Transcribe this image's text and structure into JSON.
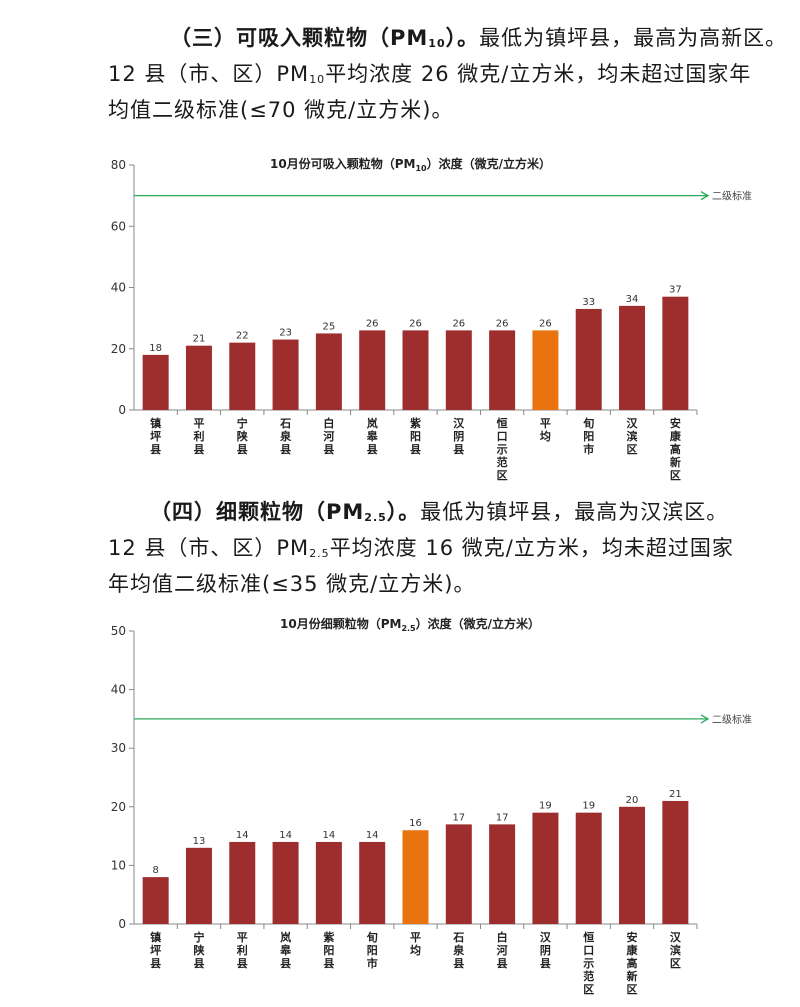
{
  "section3": {
    "heading_a": "（三）可吸入颗粒物（PM",
    "heading_sub": "10",
    "heading_b": "）。",
    "line1_rest": "最低为镇坪县，最高为高新区。",
    "line2_a": "12 县（市、区）PM",
    "line2_sub": "10",
    "line2_b": "平均浓度 26 微克/立方米，均未超过国家年",
    "line3": "均值二级标准(≤70 微克/立方米)。"
  },
  "section4": {
    "heading_a": "（四）细颗粒物（PM",
    "heading_sub": "2.5",
    "heading_b": "）。",
    "line1_rest": "最低为镇坪县，最高为汉滨区。",
    "line2_a": "12 县（市、区）PM",
    "line2_sub": "2.5",
    "line2_b": "平均浓度 16 微克/立方米，均未超过国家",
    "line3": "年均值二级标准(≤35 微克/立方米)。"
  },
  "colors": {
    "bar": "#9e2e2e",
    "highlight": "#e8730f",
    "standard_line": "#2ea85a",
    "axis": "#888888"
  },
  "chart_data": [
    {
      "type": "bar",
      "title_a": "10月份可吸入颗粒物（PM",
      "title_sub": "10",
      "title_b": "）浓度（微克/立方米）",
      "ylim": [
        0,
        80
      ],
      "yticks": [
        0,
        20,
        40,
        60,
        80
      ],
      "categories": [
        "镇坪县",
        "平利县",
        "宁陕县",
        "石泉县",
        "白河县",
        "岚皋县",
        "紫阳县",
        "汉阴县",
        "恒口示范区",
        "平均",
        "旬阳市",
        "汉滨区",
        "安康高新区"
      ],
      "values": [
        18,
        21,
        22,
        23,
        25,
        26,
        26,
        26,
        26,
        26,
        33,
        34,
        37
      ],
      "highlight_category": "平均",
      "reference_line": {
        "value": 70,
        "label": "二级标准"
      },
      "grid": false,
      "legend": "none"
    },
    {
      "type": "bar",
      "title_a": "10月份细颗粒物（PM",
      "title_sub": "2.5",
      "title_b": "）浓度（微克/立方米）",
      "ylim": [
        0,
        50
      ],
      "yticks": [
        0,
        10,
        20,
        30,
        40,
        50
      ],
      "categories": [
        "镇坪县",
        "宁陕县",
        "平利县",
        "岚皋县",
        "紫阳县",
        "旬阳市",
        "平均",
        "石泉县",
        "白河县",
        "汉阴县",
        "恒口示范区",
        "安康高新区",
        "汉滨区"
      ],
      "values": [
        8,
        13,
        14,
        14,
        14,
        14,
        16,
        17,
        17,
        19,
        19,
        20,
        21
      ],
      "highlight_category": "平均",
      "reference_line": {
        "value": 35,
        "label": "二级标准"
      },
      "grid": false,
      "legend": "none"
    }
  ]
}
